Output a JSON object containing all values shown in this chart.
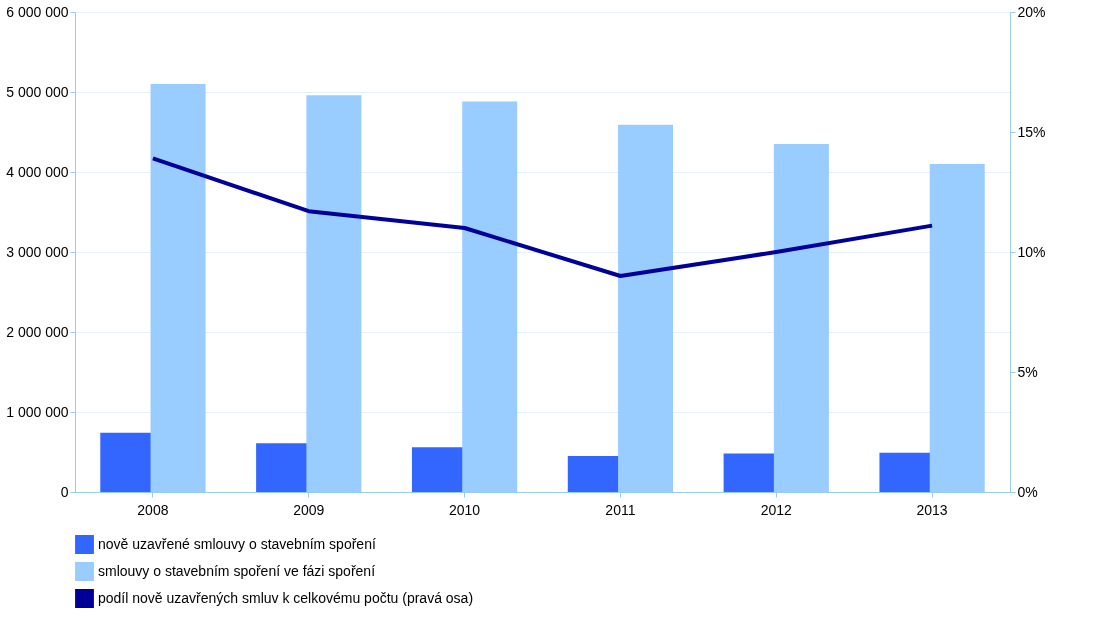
{
  "chart_data": {
    "type": "bar",
    "categories": [
      "2008",
      "2009",
      "2010",
      "2011",
      "2012",
      "2013"
    ],
    "series": [
      {
        "name": "nově uzavřené smlouvy o stavebním spoření",
        "color": "#3366ff",
        "values": [
          740000,
          610000,
          560000,
          450000,
          480000,
          490000
        ]
      },
      {
        "name": "smlouvy o stavebním spoření ve fázi spoření",
        "color": "#99ccff",
        "values": [
          5100000,
          4960000,
          4880000,
          4590000,
          4350000,
          4100000
        ]
      },
      {
        "name": "podíl nově uzavřených smluv k celkovému počtu (pravá osa)",
        "color": "#000099",
        "type": "line",
        "axis": "y2",
        "values": [
          13.9,
          11.7,
          11.0,
          9.0,
          10.0,
          11.1
        ]
      }
    ],
    "ylim": [
      0,
      6000000
    ],
    "yticks": [
      {
        "value": 0,
        "label": "0"
      },
      {
        "value": 1000000,
        "label": "1 000 000"
      },
      {
        "value": 2000000,
        "label": "2 000 000"
      },
      {
        "value": 3000000,
        "label": "3 000 000"
      },
      {
        "value": 4000000,
        "label": "4 000 000"
      },
      {
        "value": 5000000,
        "label": "5 000 000"
      },
      {
        "value": 6000000,
        "label": "6 000 000"
      }
    ],
    "y2lim": [
      0,
      20
    ],
    "y2ticks": [
      {
        "value": 0,
        "label": "0%"
      },
      {
        "value": 5,
        "label": "5%"
      },
      {
        "value": 10,
        "label": "10%"
      },
      {
        "value": 15,
        "label": "15%"
      },
      {
        "value": 20,
        "label": "20%"
      }
    ],
    "grid": "y",
    "legend": "bottom",
    "marker": "none",
    "line_style": "solid"
  }
}
